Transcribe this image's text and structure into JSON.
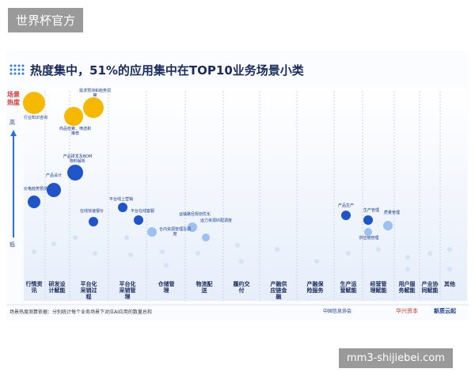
{
  "watermark": {
    "top": "世界杯官方",
    "bottom": "mm3-shijiebei.com"
  },
  "header": {
    "title": "热度集中，51%的应用集中在TOP10业务场景小类"
  },
  "axis": {
    "label": "场景热度",
    "high": "高",
    "low": "低"
  },
  "bubbles": [
    "行业知识咨询",
    "需求预测和趋势洞察",
    "商品检索、筛选和推荐",
    "价格趋势预测",
    "产品设计",
    "产品研发及BOM物料解析",
    "在线快速报价",
    "平台线上营销",
    "平台在线客服",
    "仓内资源管理及调度",
    "运输路径规划优化",
    "运力资源匹配调度",
    "产品生产",
    "生产管理",
    "质量管理",
    "供应链管理"
  ],
  "categories": [
    "行情资讯",
    "研发设计赋能",
    "平台化采销过程",
    "平台化采销管理",
    "仓储管理",
    "物流配送",
    "履约交付",
    "产融供应链金融",
    "产融保险服务",
    "生产运营赋能",
    "经营管理赋能",
    "用户服务赋能",
    "产业协同赋能",
    "其他"
  ],
  "footer": {
    "note": "场景热度测算依据：分别统计每个业务场景下对应AI应用的数量总和",
    "logos": [
      "中国信息协会",
      "华兴资本",
      "新质云起"
    ]
  }
}
